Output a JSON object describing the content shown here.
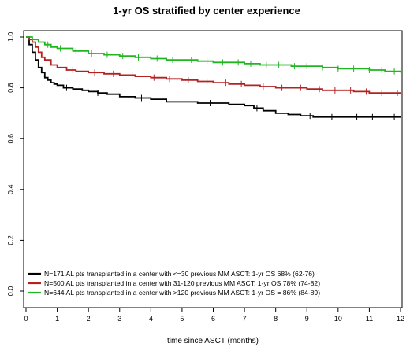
{
  "chart_data": {
    "type": "line",
    "title": "1-yr OS stratified by center experience",
    "xlabel": "time since ASCT (months)",
    "ylabel": "",
    "xlim": [
      0,
      12
    ],
    "ylim": [
      0,
      1.0
    ],
    "x_ticks": [
      0,
      1,
      2,
      3,
      4,
      5,
      6,
      7,
      8,
      9,
      10,
      11,
      12
    ],
    "y_ticks": [
      "0.0",
      "0.2",
      "0.4",
      "0.6",
      "0.8",
      "1.0"
    ],
    "grid": false,
    "legend_position": "bottom-left",
    "series": [
      {
        "name": "N=171 AL pts transplanted in a center with    <=30 previous MM ASCT: 1-yr OS 68% (62-76)",
        "color": "#000000",
        "x": [
          0,
          0.1,
          0.2,
          0.3,
          0.4,
          0.5,
          0.6,
          0.7,
          0.8,
          0.9,
          1.0,
          1.2,
          1.5,
          1.8,
          2.0,
          2.3,
          2.6,
          3.0,
          3.5,
          4.0,
          4.5,
          5.0,
          5.5,
          6.0,
          6.5,
          7.0,
          7.3,
          7.6,
          8.0,
          8.4,
          8.8,
          9.2,
          10.0,
          11.0,
          12.0
        ],
        "y": [
          1.0,
          0.97,
          0.94,
          0.91,
          0.88,
          0.86,
          0.84,
          0.83,
          0.82,
          0.815,
          0.81,
          0.8,
          0.795,
          0.79,
          0.785,
          0.78,
          0.775,
          0.765,
          0.76,
          0.755,
          0.745,
          0.745,
          0.74,
          0.74,
          0.735,
          0.73,
          0.72,
          0.71,
          0.7,
          0.695,
          0.69,
          0.685,
          0.685,
          0.685,
          0.685
        ],
        "censor_x": [
          1.3,
          2.3,
          3.7,
          5.9,
          7.4,
          9.1,
          9.8,
          10.6,
          11.1,
          11.8
        ]
      },
      {
        "name": "N=500 AL pts transplanted in a center with 31-120 previous MM ASCT: 1-yr OS 78% (74-82)",
        "color": "#b22222",
        "x": [
          0,
          0.1,
          0.2,
          0.3,
          0.4,
          0.5,
          0.6,
          0.8,
          1.0,
          1.3,
          1.6,
          2.0,
          2.5,
          3.0,
          3.5,
          4.0,
          4.5,
          5.0,
          5.5,
          6.0,
          6.5,
          7.0,
          7.5,
          8.0,
          8.5,
          9.0,
          9.5,
          10.0,
          10.5,
          11.0,
          11.5,
          12.0
        ],
        "y": [
          1.0,
          0.99,
          0.98,
          0.96,
          0.94,
          0.92,
          0.91,
          0.89,
          0.88,
          0.87,
          0.865,
          0.86,
          0.855,
          0.85,
          0.845,
          0.84,
          0.835,
          0.83,
          0.825,
          0.82,
          0.815,
          0.81,
          0.805,
          0.8,
          0.8,
          0.795,
          0.79,
          0.79,
          0.785,
          0.78,
          0.78,
          0.78
        ],
        "censor_x": [
          1.5,
          2.2,
          2.8,
          3.4,
          4.1,
          4.6,
          5.2,
          5.8,
          6.4,
          6.9,
          7.6,
          8.2,
          8.8,
          9.4,
          9.9,
          10.4,
          10.9,
          11.4,
          11.9
        ]
      },
      {
        "name": "N=644 AL pts transplanted in a center with   >120 previous MM ASCT: 1-yr OS = 86% (84-89)",
        "color": "#22b522",
        "x": [
          0,
          0.2,
          0.4,
          0.6,
          0.8,
          1.0,
          1.5,
          2.0,
          2.5,
          3.0,
          3.5,
          4.0,
          4.5,
          5.0,
          5.5,
          6.0,
          6.5,
          7.0,
          7.5,
          8.0,
          8.5,
          9.0,
          9.5,
          10.0,
          10.5,
          11.0,
          11.5,
          12.0
        ],
        "y": [
          1.0,
          0.99,
          0.98,
          0.97,
          0.96,
          0.955,
          0.945,
          0.935,
          0.93,
          0.925,
          0.92,
          0.915,
          0.91,
          0.91,
          0.905,
          0.9,
          0.9,
          0.895,
          0.89,
          0.89,
          0.885,
          0.885,
          0.88,
          0.875,
          0.875,
          0.87,
          0.865,
          0.86
        ],
        "censor_x": [
          0.7,
          1.1,
          1.6,
          2.1,
          2.6,
          3.1,
          3.6,
          4.2,
          4.7,
          5.3,
          5.8,
          6.3,
          6.8,
          7.2,
          7.7,
          8.1,
          8.6,
          9.0,
          9.5,
          10.0,
          10.5,
          11.0,
          11.4,
          11.8
        ]
      }
    ]
  }
}
